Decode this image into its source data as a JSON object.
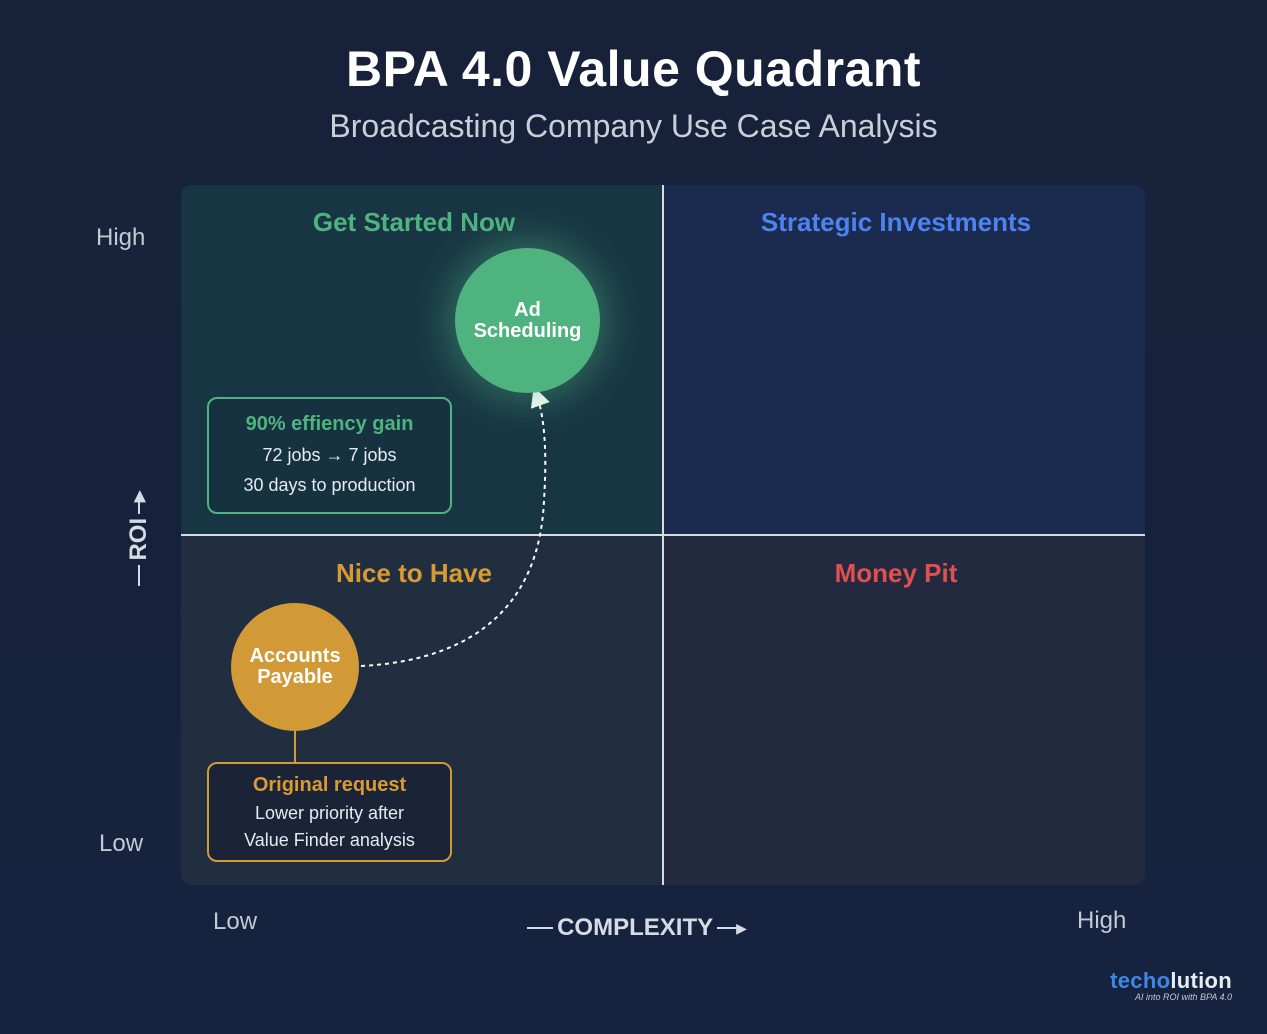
{
  "title": "BPA 4.0 Value Quadrant",
  "subtitle": "Broadcasting Company Use Case Analysis",
  "quadrants": {
    "top_left": {
      "label": "Get Started Now",
      "color": "#4fb380"
    },
    "top_right": {
      "label": "Strategic Investments",
      "color": "#4d82f0"
    },
    "bottom_left": {
      "label": "Nice to Have",
      "color": "#d99a33"
    },
    "bottom_right": {
      "label": "Money Pit",
      "color": "#e0504f"
    }
  },
  "axes": {
    "y": {
      "label": "ROI",
      "high": "High",
      "low": "Low"
    },
    "x": {
      "label": "COMPLEXITY",
      "low": "Low",
      "high": "High"
    }
  },
  "items": {
    "ad_scheduling": {
      "line1": "Ad",
      "line2": "Scheduling",
      "color": "#4fb380"
    },
    "accounts_payable": {
      "line1": "Accounts",
      "line2": "Payable",
      "color": "#d29a37"
    }
  },
  "cards": {
    "gain": {
      "headline": "90% effiency gain",
      "jobs_from": "72 jobs",
      "jobs_to": "7 jobs",
      "line2": "30 days to production"
    },
    "original": {
      "headline": "Original request",
      "line1": "Lower priority after",
      "line2": "Value Finder analysis"
    }
  },
  "brand": {
    "name_a": "tech",
    "name_b": "o",
    "name_c": "lution",
    "tagline": "AI into ROI with BPA 4.0"
  }
}
